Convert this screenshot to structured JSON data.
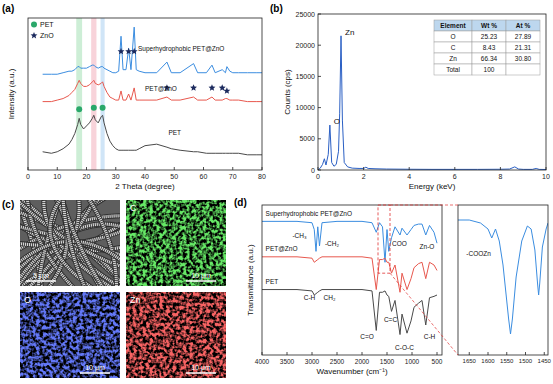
{
  "chart_data": [
    {
      "panel": "(a)",
      "type": "line",
      "x_label": "2 Theta (degree)",
      "y_label": "Intensity (a.u.)",
      "xlim": [
        0,
        80
      ],
      "xticks": [
        0,
        10,
        20,
        30,
        40,
        50,
        60,
        70,
        80
      ],
      "ylim": [
        0,
        100
      ],
      "tick_labels": "x",
      "legend": "upper left",
      "x": [
        5,
        8,
        10,
        12,
        14,
        15,
        16,
        17,
        17.5,
        18,
        19,
        20,
        21,
        22,
        22.5,
        23,
        24,
        25,
        25.5,
        26,
        27,
        28,
        29,
        30,
        31,
        31.8,
        32.5,
        33.5,
        34.4,
        35.2,
        36.3,
        37,
        38,
        40,
        44,
        47.5,
        49,
        52,
        56.6,
        58,
        61,
        62.9,
        64,
        66.4,
        67.5,
        68,
        69,
        70,
        72,
        75,
        78,
        80
      ],
      "series": [
        {
          "name": "PET",
          "color": "#4a4a4a",
          "values": [
            12,
            11,
            12,
            14,
            17,
            20,
            24,
            30,
            34,
            30,
            27,
            29,
            31,
            34,
            36,
            33,
            31,
            35,
            36,
            31,
            24,
            19,
            16,
            14,
            13,
            13,
            13,
            13,
            13,
            13,
            13,
            13,
            14,
            16,
            17,
            15,
            14,
            13,
            12,
            12,
            11,
            11,
            11,
            11,
            11,
            11,
            11,
            11,
            11,
            10,
            10,
            10
          ]
        },
        {
          "name": "PET@ZnO",
          "color": "#e8584e",
          "values": [
            45,
            45,
            46,
            47,
            49,
            51,
            53,
            57,
            59,
            57,
            55,
            55,
            56,
            58,
            59,
            57,
            56,
            57,
            58,
            55,
            51,
            48,
            47,
            46,
            46,
            52,
            46,
            46,
            50,
            46,
            54,
            46,
            46,
            46,
            46,
            48,
            46,
            46,
            48,
            46,
            46,
            48,
            46,
            46,
            47,
            47,
            46,
            46,
            46,
            45,
            45,
            45
          ]
        },
        {
          "name": "Superhydrophobic PET@ZnO",
          "color": "#3b8de0",
          "values": [
            63,
            63,
            63,
            64,
            65,
            65,
            66,
            68,
            68,
            67,
            67,
            67,
            68,
            69,
            69,
            68,
            67,
            68,
            68,
            67,
            66,
            65,
            64,
            64,
            65,
            88,
            66,
            66,
            80,
            66,
            94,
            66,
            65,
            64,
            64,
            71,
            64,
            64,
            70,
            64,
            64,
            69,
            64,
            66,
            64,
            68,
            65,
            64,
            64,
            64,
            64,
            64
          ]
        }
      ],
      "markers": [
        {
          "name": "PET",
          "marker": "circle",
          "color": "#2aa86a",
          "x": [
            17.5,
            22.5,
            25.5
          ],
          "values": [
            40,
            41,
            41
          ]
        },
        {
          "name": "ZnO",
          "marker": "star",
          "color": "#1c2a5e",
          "x": [
            31.8,
            34.4,
            36.3,
            47.5,
            56.6,
            62.9,
            66.4,
            68
          ],
          "values": [
            78,
            78,
            78,
            54,
            54,
            54,
            54,
            52
          ]
        }
      ],
      "bands": [
        {
          "xlim": [
            16.5,
            18.5
          ],
          "color": "#cdeed6"
        },
        {
          "xlim": [
            21.6,
            23.4
          ],
          "color": "#f8d3da"
        },
        {
          "xlim": [
            24.8,
            26.2
          ],
          "color": "#d0e5f7"
        }
      ]
    },
    {
      "panel": "(b)",
      "type": "line",
      "x_label": "Energy (keV)",
      "y_label": "Counts (cps)",
      "xlim": [
        0,
        10
      ],
      "xticks": [
        0,
        2,
        4,
        6,
        8,
        10
      ],
      "ylim": [
        0,
        25000
      ],
      "yticks": [
        0,
        5000,
        10000,
        15000,
        20000,
        25000
      ],
      "color": "#2a5fc4",
      "x": [
        0,
        0.1,
        0.2,
        0.28,
        0.35,
        0.45,
        0.52,
        0.6,
        0.7,
        0.8,
        0.9,
        0.95,
        1.01,
        1.07,
        1.15,
        1.3,
        1.5,
        1.8,
        2.0,
        2.1,
        2.2,
        2.5,
        3,
        4,
        5,
        6,
        7,
        8,
        8.4,
        8.63,
        8.8,
        9,
        9.4,
        9.57,
        9.7,
        10
      ],
      "values": [
        0,
        300,
        900,
        1800,
        800,
        2500,
        7200,
        1200,
        600,
        900,
        3000,
        9000,
        21500,
        8000,
        1200,
        500,
        300,
        250,
        250,
        450,
        250,
        200,
        150,
        120,
        100,
        100,
        100,
        120,
        150,
        500,
        150,
        100,
        100,
        250,
        100,
        80
      ],
      "annotations": [
        {
          "text": "Zn",
          "x": 1.01,
          "y": 21500
        },
        {
          "text": "O",
          "x": 0.52,
          "y": 7200
        }
      ],
      "table": {
        "header": [
          "Element",
          "Wt %",
          "At %"
        ],
        "rows": [
          [
            "O",
            "25.23",
            "27.89"
          ],
          [
            "C",
            "8.43",
            "21.31"
          ],
          [
            "Zn",
            "66.34",
            "30.80"
          ],
          [
            "Total",
            "100"
          ]
        ]
      }
    },
    {
      "panel": "(d)",
      "type": "line",
      "x_label": "Wavenumber (cm⁻¹)",
      "y_label": "Transmittance (a.u.)",
      "xlim": [
        4000,
        400
      ],
      "xticks": [
        4000,
        3500,
        3000,
        2500,
        2000,
        1500,
        1000,
        500
      ],
      "ylim": [
        -10,
        100
      ],
      "tick_labels": "x",
      "x": [
        4000,
        3700,
        3500,
        3300,
        3000,
        2955,
        2920,
        2885,
        2850,
        2800,
        2500,
        2200,
        2000,
        1800,
        1715,
        1650,
        1590,
        1540,
        1500,
        1465,
        1410,
        1340,
        1240,
        1200,
        1100,
        1020,
        960,
        870,
        800,
        725,
        650,
        560,
        500
      ],
      "series": [
        {
          "name": "Superhydrophobic PET@ZnO",
          "color": "#3b8de0",
          "values": [
            88,
            88,
            88,
            88,
            87,
            82,
            66,
            84,
            70,
            87,
            88,
            88,
            88,
            87,
            80,
            87,
            84,
            58,
            82,
            66,
            76,
            84,
            78,
            83,
            78,
            82,
            85,
            86,
            86,
            78,
            85,
            80,
            72
          ]
        },
        {
          "name": "PET@ZnO",
          "color": "#e8584e",
          "values": [
            62,
            62,
            62,
            62,
            61,
            58,
            59,
            60,
            61,
            62,
            62,
            62,
            62,
            61,
            38,
            60,
            60,
            61,
            58,
            58,
            50,
            56,
            36,
            50,
            38,
            46,
            54,
            57,
            58,
            46,
            58,
            56,
            52
          ]
        },
        {
          "name": "PET",
          "color": "#4a4a4a",
          "values": [
            38,
            38,
            38,
            38,
            37,
            34,
            35,
            36,
            37,
            38,
            38,
            38,
            38,
            37,
            8,
            36,
            36,
            37,
            34,
            33,
            22,
            30,
            5,
            20,
            6,
            15,
            25,
            28,
            30,
            12,
            32,
            33,
            34
          ]
        }
      ],
      "annotations": [
        {
          "text": "-CH₃",
          "x": 3250,
          "y": 76
        },
        {
          "text": "-CH₂",
          "x": 2600,
          "y": 70
        },
        {
          "text": "COO",
          "x": 1250,
          "y": 70
        },
        {
          "text": "Zn-O",
          "x": 700,
          "y": 68
        },
        {
          "text": "C-H",
          "x": 3050,
          "y": 30
        },
        {
          "text": "CH₂",
          "x": 2650,
          "y": 30
        },
        {
          "text": "C=O",
          "x": 1900,
          "y": 2
        },
        {
          "text": "C=C",
          "x": 1430,
          "y": 14
        },
        {
          "text": "C-O-C",
          "x": 1150,
          "y": -6
        },
        {
          "text": "C-H",
          "x": 650,
          "y": 2
        }
      ]
    },
    {
      "type": "line",
      "xlim": [
        1680,
        1440
      ],
      "xticks": [
        1650,
        1600,
        1550,
        1500,
        1450
      ],
      "ylim": [
        50,
        100
      ],
      "tick_labels": "x",
      "color": "#3b8de0",
      "x": [
        1680,
        1650,
        1620,
        1600,
        1590,
        1580,
        1570,
        1560,
        1550,
        1545,
        1540,
        1535,
        1525,
        1510,
        1495,
        1485,
        1475,
        1468,
        1465,
        1462,
        1455,
        1445,
        1440
      ],
      "values": [
        95,
        95,
        94,
        92,
        89,
        92,
        88,
        80,
        68,
        62,
        57,
        62,
        76,
        88,
        93,
        92,
        85,
        74,
        70,
        74,
        86,
        92,
        94
      ],
      "annotations": [
        {
          "text": "-COOZn",
          "x": 1625,
          "y": 83
        }
      ]
    }
  ],
  "panel_c": {
    "panel": "(c)",
    "images": [
      {
        "scale_bar": "5 μm"
      },
      {
        "label": "C",
        "scale_bar": "10 μm",
        "color": "#22d022"
      },
      {
        "label": "O",
        "scale_bar": "10 μm",
        "color": "#2030f0"
      },
      {
        "label": "Zn",
        "scale_bar": "10 μm",
        "color": "#f02020"
      }
    ]
  }
}
